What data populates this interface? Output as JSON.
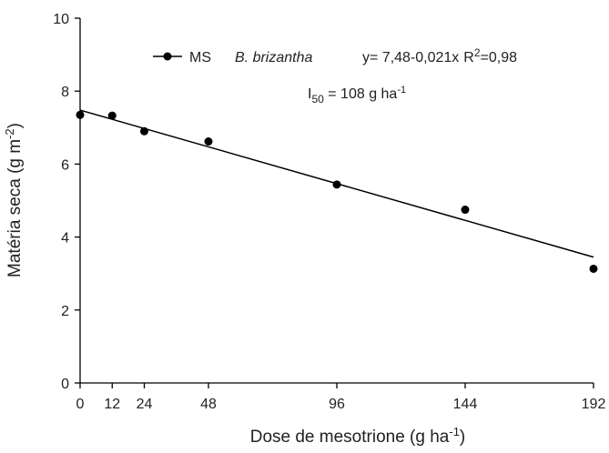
{
  "chart_data": {
    "type": "scatter",
    "x_label": {
      "main": "Dose de mesotrione (g ha",
      "sup": "-1",
      "end": ")"
    },
    "y_label": {
      "main": "Matéria seca (g  m",
      "sup": "-2",
      "end": ")"
    },
    "xlim": [
      0,
      192
    ],
    "ylim": [
      0,
      10
    ],
    "xticks": [
      0,
      12,
      24,
      48,
      96,
      144,
      192
    ],
    "yticks": [
      0,
      2,
      4,
      6,
      8,
      10
    ],
    "series": [
      {
        "name": "MS",
        "species": "B. brizantha",
        "color": "#000000",
        "x": [
          0,
          12,
          24,
          48,
          96,
          144,
          192
        ],
        "values": [
          7.35,
          7.33,
          6.9,
          6.62,
          5.44,
          4.75,
          3.13
        ]
      }
    ],
    "fit": {
      "x": [
        0,
        192
      ],
      "values": [
        7.48,
        3.45
      ],
      "color": "#000000",
      "equation": "y= 7,48-0,021x",
      "r2_label": "R",
      "r2_sup": "2",
      "r2_value": "=0,98"
    },
    "annotation": {
      "main": "I",
      "sub": "50",
      "rest": " = 108 g ha",
      "sup": "-1"
    }
  }
}
